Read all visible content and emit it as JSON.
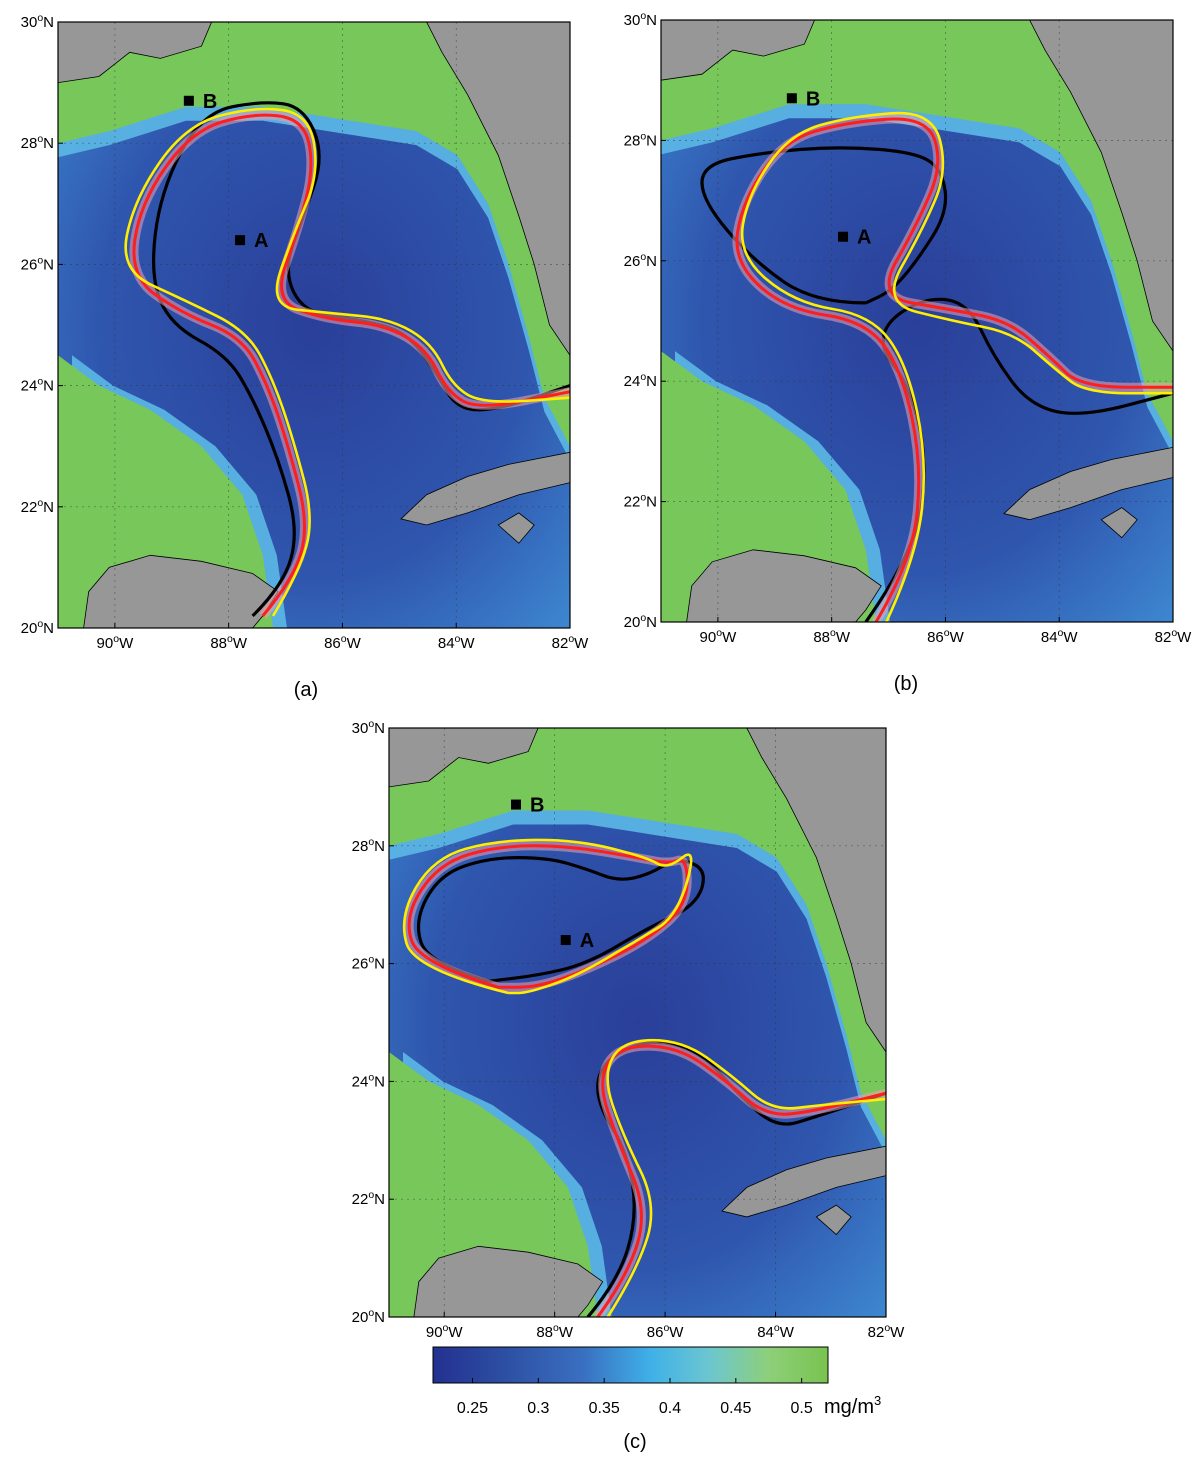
{
  "panels": [
    {
      "id": "a",
      "caption": "(a)",
      "lat_ticks": [
        "30",
        "28",
        "26",
        "24",
        "22",
        "20"
      ],
      "lon_ticks": [
        "90",
        "88",
        "86",
        "84",
        "82"
      ],
      "points": [
        {
          "label": "A",
          "lon": -87.8,
          "lat": 26.4
        },
        {
          "label": "B",
          "lon": -88.7,
          "lat": 28.7
        }
      ]
    },
    {
      "id": "b",
      "caption": "(b)",
      "lat_ticks": [
        "30",
        "28",
        "26",
        "24",
        "22",
        "20"
      ],
      "lon_ticks": [
        "90",
        "88",
        "86",
        "84",
        "82"
      ],
      "points": [
        {
          "label": "A",
          "lon": -87.8,
          "lat": 26.4
        },
        {
          "label": "B",
          "lon": -88.7,
          "lat": 28.7
        }
      ]
    },
    {
      "id": "c",
      "caption": "(c)",
      "lat_ticks": [
        "30",
        "28",
        "26",
        "24",
        "22",
        "20"
      ],
      "lon_ticks": [
        "90",
        "88",
        "86",
        "84",
        "82"
      ],
      "points": [
        {
          "label": "A",
          "lon": -87.8,
          "lat": 26.4
        },
        {
          "label": "B",
          "lon": -88.7,
          "lat": 28.7
        }
      ]
    }
  ],
  "axis": {
    "degree_symbol": "o",
    "north": "N",
    "west": "W"
  },
  "colorbar": {
    "ticks": [
      "0.25",
      "0.3",
      "0.35",
      "0.4",
      "0.45",
      "0.5"
    ],
    "tick_values": [
      0.25,
      0.3,
      0.35,
      0.4,
      0.45,
      0.5
    ],
    "range": [
      0.22,
      0.52
    ],
    "unit_main": "mg/m",
    "unit_sup": "3",
    "colors": [
      "#23308f",
      "#2d4fa3",
      "#3a6fc0",
      "#3fb0e8",
      "#6cc6d0",
      "#8dcf7a",
      "#79c34f"
    ]
  },
  "colors": {
    "land": "#979797",
    "shelf": "#77c75a",
    "deep": "#2e4fa6",
    "front_black": "#000000",
    "front_red": "#ff1e1e",
    "front_yellow": "#ffee00",
    "front_pink": "#f0a0b0"
  }
}
